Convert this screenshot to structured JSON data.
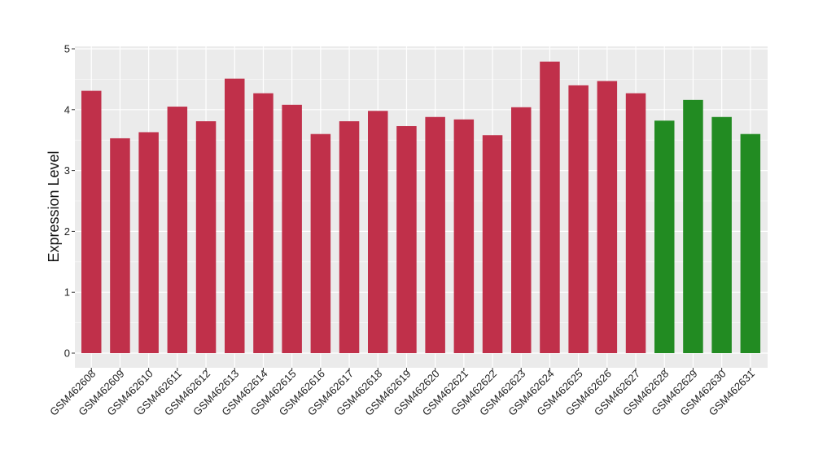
{
  "chart_data": {
    "type": "bar",
    "title": "",
    "xlabel": "",
    "ylabel": "Expression Level",
    "ylim": [
      0,
      5
    ],
    "yticks": [
      0,
      1,
      2,
      3,
      4,
      5
    ],
    "grid": true,
    "legend": "none",
    "categories": [
      "GSM462608",
      "GSM462609",
      "GSM462610",
      "GSM462611",
      "GSM462612",
      "GSM462613",
      "GSM462614",
      "GSM462615",
      "GSM462616",
      "GSM462617",
      "GSM462618",
      "GSM462619",
      "GSM462620",
      "GSM462621",
      "GSM462622",
      "GSM462623",
      "GSM462624",
      "GSM462625",
      "GSM462626",
      "GSM462627",
      "GSM462628",
      "GSM462629",
      "GSM462630",
      "GSM462631"
    ],
    "values": [
      4.31,
      3.53,
      3.63,
      4.05,
      3.81,
      4.51,
      4.27,
      4.08,
      3.6,
      3.81,
      3.98,
      3.73,
      3.88,
      3.84,
      3.58,
      4.04,
      4.79,
      4.4,
      4.47,
      4.27,
      3.82,
      4.16,
      3.88,
      3.6
    ],
    "bar_colors": [
      "#c0304a",
      "#c0304a",
      "#c0304a",
      "#c0304a",
      "#c0304a",
      "#c0304a",
      "#c0304a",
      "#c0304a",
      "#c0304a",
      "#c0304a",
      "#c0304a",
      "#c0304a",
      "#c0304a",
      "#c0304a",
      "#c0304a",
      "#c0304a",
      "#c0304a",
      "#c0304a",
      "#c0304a",
      "#c0304a",
      "#228b22",
      "#228b22",
      "#228b22",
      "#228b22"
    ],
    "panel_background": "#ebebeb",
    "gridline_color": "#ffffff"
  }
}
